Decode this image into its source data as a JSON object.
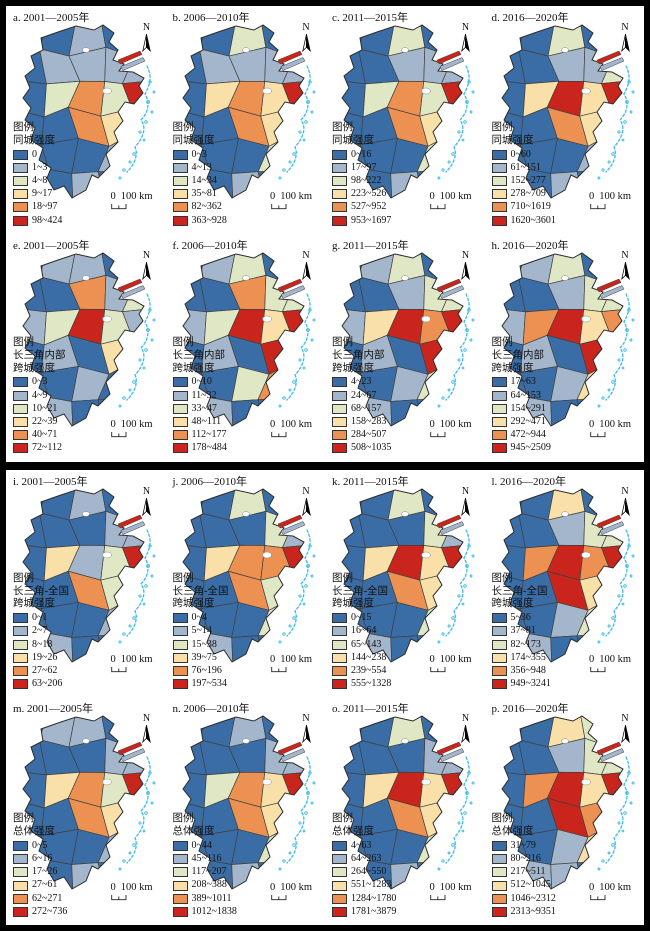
{
  "figure": {
    "legend_header": "图例",
    "north_label": "N",
    "scalebar": {
      "zero": "0",
      "distance": "100",
      "unit": "km"
    }
  },
  "palette": [
    "#3A6DA6",
    "#A3B6CB",
    "#DFE7C4",
    "#F9DFA8",
    "#EC9152",
    "#C9251D"
  ],
  "map_colors": {
    "cell_stroke": "#3F3F3F",
    "outline_stroke": "#2B2B2B",
    "coast": "#3BBAEA",
    "lake_fill": "#FFFFFF",
    "estuary_sliver_blue": "#A3B6CB",
    "estuary_sliver_red": "#C9251D"
  },
  "panels": [
    {
      "id": "a",
      "title": "a. 2001—2005年",
      "measure_lines": [
        "同城强度"
      ],
      "classes": [
        "0",
        "1~3",
        "4~8",
        "9~17",
        "18~97",
        "98~424"
      ],
      "cells": [
        0,
        0,
        1,
        0,
        0,
        0,
        1,
        1,
        1,
        1,
        0,
        2,
        4,
        2,
        5,
        0,
        0,
        4,
        3,
        2,
        0,
        0,
        0,
        1,
        0,
        0,
        0,
        1,
        0,
        0
      ]
    },
    {
      "id": "b",
      "title": "b. 2006—2010年",
      "measure_lines": [
        "同城强度"
      ],
      "classes": [
        "0~3",
        "4~13",
        "14~34",
        "35~81",
        "82~362",
        "363~928"
      ],
      "cells": [
        0,
        0,
        2,
        0,
        0,
        0,
        1,
        1,
        1,
        1,
        0,
        3,
        4,
        3,
        5,
        0,
        0,
        4,
        3,
        2,
        0,
        0,
        0,
        2,
        0,
        0,
        0,
        1,
        0,
        0
      ]
    },
    {
      "id": "c",
      "title": "c. 2011—2015年",
      "measure_lines": [
        "同城强度"
      ],
      "classes": [
        "0~16",
        "17~97",
        "98~222",
        "223~526",
        "527~952",
        "953~1697"
      ],
      "cells": [
        0,
        0,
        2,
        0,
        0,
        0,
        0,
        1,
        1,
        1,
        0,
        2,
        4,
        2,
        5,
        0,
        0,
        4,
        3,
        1,
        0,
        0,
        0,
        2,
        0,
        0,
        0,
        1,
        0,
        0
      ]
    },
    {
      "id": "d",
      "title": "d. 2016—2020年",
      "measure_lines": [
        "同城强度"
      ],
      "classes": [
        "0~60",
        "61~151",
        "152~277",
        "278~709",
        "710~1619",
        "1620~3601"
      ],
      "cells": [
        0,
        0,
        2,
        0,
        0,
        0,
        0,
        1,
        1,
        2,
        0,
        3,
        5,
        3,
        5,
        0,
        0,
        4,
        3,
        2,
        0,
        0,
        0,
        1,
        0,
        0,
        0,
        1,
        0,
        0
      ]
    },
    {
      "id": "e",
      "title": "e. 2001—2005年",
      "measure_lines": [
        "长三角内部",
        "跨城强度"
      ],
      "classes": [
        "0~3",
        "4~9",
        "10~21",
        "22~39",
        "40~71",
        "72~112"
      ],
      "cells": [
        0,
        1,
        1,
        0,
        0,
        0,
        0,
        4,
        1,
        2,
        1,
        2,
        5,
        2,
        1,
        0,
        1,
        0,
        3,
        3,
        0,
        0,
        1,
        0,
        0,
        0,
        1,
        0,
        0,
        0
      ]
    },
    {
      "id": "f",
      "title": "f. 2006—2010年",
      "measure_lines": [
        "长三角内部",
        "跨城强度"
      ],
      "classes": [
        "0~10",
        "11~32",
        "33~47",
        "48~111",
        "112~177",
        "178~484"
      ],
      "cells": [
        0,
        1,
        2,
        0,
        0,
        0,
        0,
        4,
        2,
        2,
        1,
        2,
        5,
        3,
        5,
        0,
        1,
        0,
        5,
        3,
        0,
        0,
        2,
        4,
        0,
        0,
        1,
        0,
        0,
        0
      ]
    },
    {
      "id": "g",
      "title": "g. 2011—2015年",
      "measure_lines": [
        "长三角内部",
        "跨城强度"
      ],
      "classes": [
        "4~23",
        "24~67",
        "68~157",
        "158~283",
        "284~507",
        "508~1035"
      ],
      "cells": [
        0,
        1,
        2,
        0,
        0,
        0,
        0,
        1,
        2,
        2,
        1,
        3,
        5,
        4,
        5,
        0,
        1,
        0,
        5,
        2,
        0,
        0,
        1,
        2,
        0,
        0,
        1,
        0,
        0,
        0
      ]
    },
    {
      "id": "h",
      "title": "h. 2016—2020年",
      "measure_lines": [
        "长三角内部",
        "跨城强度"
      ],
      "classes": [
        "17~63",
        "64~153",
        "154~291",
        "292~471",
        "472~944",
        "945~2509"
      ],
      "cells": [
        0,
        1,
        2,
        0,
        0,
        0,
        0,
        1,
        2,
        2,
        1,
        4,
        5,
        3,
        4,
        0,
        1,
        0,
        5,
        3,
        0,
        0,
        1,
        3,
        0,
        0,
        1,
        0,
        0,
        0
      ]
    },
    {
      "id": "i",
      "title": "i. 2001—2005年",
      "measure_lines": [
        "长三角-全国",
        "跨城强度"
      ],
      "classes": [
        "0~1",
        "2~7",
        "8~18",
        "19~26",
        "27~62",
        "63~206"
      ],
      "cells": [
        0,
        0,
        1,
        0,
        0,
        0,
        0,
        0,
        1,
        1,
        0,
        3,
        1,
        2,
        5,
        0,
        0,
        4,
        2,
        1,
        0,
        0,
        0,
        1,
        0,
        0,
        1,
        0,
        0,
        0
      ]
    },
    {
      "id": "j",
      "title": "j. 2006—2010年",
      "measure_lines": [
        "长三角-全国",
        "跨城强度"
      ],
      "classes": [
        "0~4",
        "5~14",
        "15~38",
        "39~75",
        "76~196",
        "197~534"
      ],
      "cells": [
        0,
        0,
        2,
        0,
        0,
        0,
        0,
        0,
        2,
        1,
        0,
        3,
        4,
        4,
        5,
        0,
        0,
        4,
        2,
        2,
        0,
        0,
        0,
        2,
        0,
        0,
        1,
        0,
        0,
        0
      ]
    },
    {
      "id": "k",
      "title": "k. 2011—2015年",
      "measure_lines": [
        "长三角-全国",
        "跨城强度"
      ],
      "classes": [
        "0~15",
        "16~64",
        "65~143",
        "144~238",
        "239~554",
        "555~1328"
      ],
      "cells": [
        0,
        0,
        2,
        0,
        0,
        0,
        0,
        0,
        2,
        1,
        0,
        3,
        5,
        3,
        5,
        0,
        0,
        4,
        3,
        2,
        0,
        0,
        0,
        2,
        0,
        0,
        1,
        0,
        0,
        0
      ]
    },
    {
      "id": "l",
      "title": "l. 2016—2020年",
      "measure_lines": [
        "长三角-全国",
        "跨城强度"
      ],
      "classes": [
        "5~36",
        "37~81",
        "82~173",
        "174~355",
        "356~948",
        "949~3241"
      ],
      "cells": [
        0,
        0,
        3,
        0,
        0,
        0,
        0,
        1,
        2,
        2,
        0,
        4,
        5,
        4,
        5,
        0,
        0,
        5,
        3,
        3,
        0,
        0,
        1,
        2,
        0,
        0,
        1,
        0,
        0,
        0
      ]
    },
    {
      "id": "m",
      "title": "m. 2001—2005年",
      "measure_lines": [
        "总体强度"
      ],
      "classes": [
        "0~5",
        "6~16",
        "17~26",
        "27~61",
        "62~271",
        "272~736"
      ],
      "cells": [
        0,
        1,
        1,
        0,
        0,
        0,
        0,
        0,
        1,
        1,
        0,
        3,
        4,
        2,
        5,
        0,
        0,
        4,
        3,
        2,
        0,
        0,
        0,
        1,
        0,
        0,
        0,
        1,
        0,
        0
      ]
    },
    {
      "id": "n",
      "title": "n. 2006—2010年",
      "measure_lines": [
        "总体强度"
      ],
      "classes": [
        "0~44",
        "45~116",
        "117~207",
        "208~388",
        "389~1011",
        "1012~1838"
      ],
      "cells": [
        0,
        0,
        1,
        0,
        0,
        0,
        0,
        0,
        1,
        1,
        0,
        2,
        4,
        3,
        5,
        0,
        0,
        4,
        3,
        2,
        0,
        0,
        0,
        2,
        0,
        0,
        0,
        1,
        0,
        0
      ]
    },
    {
      "id": "o",
      "title": "o. 2011—2015年",
      "measure_lines": [
        "总体强度"
      ],
      "classes": [
        "4~63",
        "64~263",
        "264~550",
        "551~1283",
        "1284~1780",
        "1781~3879"
      ],
      "cells": [
        0,
        0,
        2,
        0,
        0,
        0,
        0,
        0,
        1,
        1,
        0,
        3,
        5,
        3,
        5,
        0,
        0,
        4,
        3,
        2,
        0,
        0,
        0,
        2,
        1,
        0,
        0,
        1,
        0,
        0
      ]
    },
    {
      "id": "p",
      "title": "p. 2016—2020年",
      "measure_lines": [
        "总体强度"
      ],
      "classes": [
        "31~79",
        "80~216",
        "217~511",
        "512~1045",
        "1046~2312",
        "2313~9351"
      ],
      "cells": [
        0,
        0,
        3,
        2,
        0,
        0,
        0,
        1,
        2,
        2,
        0,
        4,
        5,
        3,
        5,
        0,
        0,
        5,
        4,
        3,
        0,
        0,
        1,
        3,
        2,
        0,
        1,
        1,
        0,
        0
      ]
    }
  ]
}
